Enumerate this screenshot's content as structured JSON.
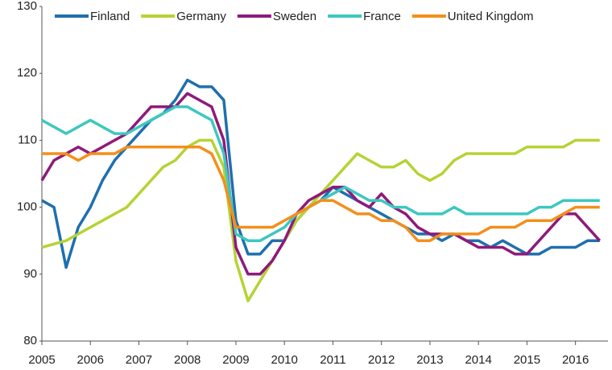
{
  "chart_data": {
    "type": "line",
    "x": [
      2005,
      2005.25,
      2005.5,
      2005.75,
      2006,
      2006.25,
      2006.5,
      2006.75,
      2007,
      2007.25,
      2007.5,
      2007.75,
      2008,
      2008.25,
      2008.5,
      2008.75,
      2009,
      2009.25,
      2009.5,
      2009.75,
      2010,
      2010.25,
      2010.5,
      2010.75,
      2011,
      2011.25,
      2011.5,
      2011.75,
      2012,
      2012.25,
      2012.5,
      2012.75,
      2013,
      2013.25,
      2013.5,
      2013.75,
      2014,
      2014.25,
      2014.5,
      2014.75,
      2015,
      2015.25,
      2015.5,
      2015.75,
      2016,
      2016.25,
      2016.5
    ],
    "series": [
      {
        "name": "Finland",
        "color": "#1f6fae",
        "values": [
          101,
          100,
          91,
          97,
          100,
          104,
          107,
          109,
          111,
          113,
          114,
          116,
          119,
          118,
          118,
          116,
          98,
          93,
          93,
          95,
          95,
          98,
          100,
          101,
          103,
          102,
          101,
          100,
          99,
          98,
          97,
          96,
          96,
          95,
          96,
          95,
          95,
          94,
          95,
          94,
          93,
          93,
          94,
          94,
          94,
          95,
          95
        ]
      },
      {
        "name": "Germany",
        "color": "#b5d334",
        "values": [
          94,
          94.5,
          95,
          96,
          97,
          98,
          99,
          100,
          102,
          104,
          106,
          107,
          109,
          110,
          110,
          106,
          92,
          86,
          89,
          92,
          95,
          98,
          100,
          102,
          104,
          106,
          108,
          107,
          106,
          106,
          107,
          105,
          104,
          105,
          107,
          108,
          108,
          108,
          108,
          108,
          109,
          109,
          109,
          109,
          110,
          110,
          110
        ]
      },
      {
        "name": "Sweden",
        "color": "#8e1a7b",
        "values": [
          104,
          107,
          108,
          109,
          108,
          109,
          110,
          111,
          113,
          115,
          115,
          115,
          117,
          116,
          115,
          110,
          94,
          90,
          90,
          92,
          95,
          99,
          101,
          102,
          103,
          103,
          101,
          100,
          102,
          100,
          99,
          97,
          96,
          96,
          96,
          95,
          94,
          94,
          94,
          93,
          93,
          95,
          97,
          99,
          99,
          97,
          95
        ]
      },
      {
        "name": "France",
        "color": "#3cc8c0",
        "values": [
          113,
          112,
          111,
          112,
          113,
          112,
          111,
          111,
          112,
          113,
          114,
          115,
          115,
          114,
          113,
          108,
          96,
          95,
          95,
          96,
          97,
          99,
          100,
          101,
          102,
          103,
          102,
          101,
          101,
          100,
          100,
          99,
          99,
          99,
          100,
          99,
          99,
          99,
          99,
          99,
          99,
          100,
          100,
          101,
          101,
          101,
          101
        ]
      },
      {
        "name": "United Kingdom",
        "color": "#f38f1c",
        "values": [
          108,
          108,
          108,
          107,
          108,
          108,
          108,
          109,
          109,
          109,
          109,
          109,
          109,
          109,
          108,
          104,
          97,
          97,
          97,
          97,
          98,
          99,
          100,
          101,
          101,
          100,
          99,
          99,
          98,
          98,
          97,
          95,
          95,
          96,
          96,
          96,
          96,
          97,
          97,
          97,
          98,
          98,
          98,
          99,
          100,
          100,
          100
        ]
      }
    ],
    "xlim": [
      2005,
      2016.67
    ],
    "xticks": [
      2005,
      2006,
      2007,
      2008,
      2009,
      2010,
      2011,
      2012,
      2013,
      2014,
      2015,
      2016
    ],
    "ylim": [
      80,
      130
    ],
    "yticks": [
      80,
      90,
      100,
      110,
      120,
      130
    ],
    "grid": false
  }
}
